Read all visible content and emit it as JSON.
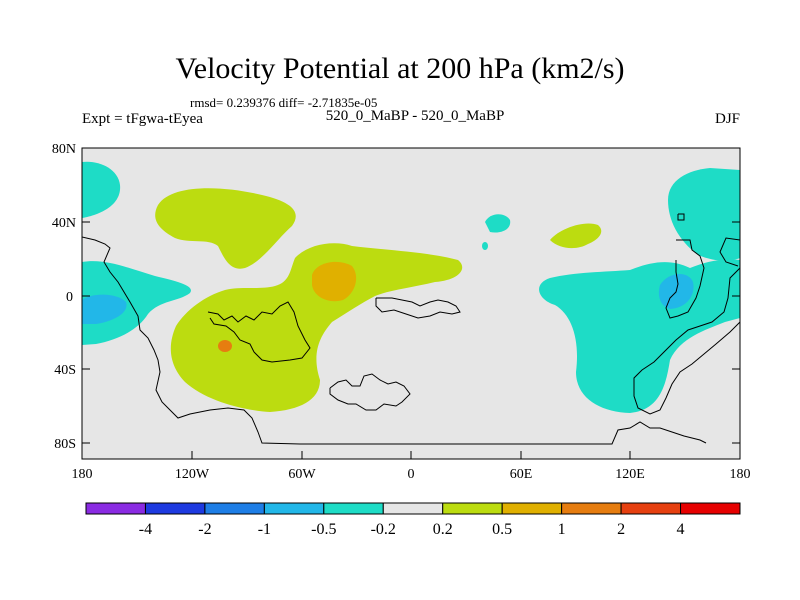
{
  "title": "Velocity Potential at 200 hPa (km2/s)",
  "stats": "rmsd= 0.239376 diff= -2.71835e-05",
  "experiment": "Expt = tFgwa-tEyea",
  "subtitle": "520_0_MaBP - 520_0_MaBP",
  "season": "DJF",
  "lat_ticks": [
    "80N",
    "40N",
    "0",
    "40S",
    "80S"
  ],
  "lon_ticks": [
    "180",
    "120W",
    "60W",
    "0",
    "60E",
    "120E",
    "180"
  ],
  "colorbar": {
    "labels": [
      "-4",
      "-2",
      "-1",
      "-0.5",
      "-0.2",
      "0.2",
      "0.5",
      "1",
      "2",
      "4"
    ],
    "colors": [
      "#8a2be2",
      "#1e3ae0",
      "#1e7ee6",
      "#22b7e8",
      "#1edcc6",
      "#e6e6e6",
      "#bcdc10",
      "#e0b000",
      "#e67d10",
      "#e64010",
      "#e60000"
    ]
  },
  "colors": {
    "background": "#e6e6e6",
    "neg_weak": "#1edcc6",
    "neg_mid": "#22b7e8",
    "pos_weak": "#bcdc10",
    "pos_mid": "#e0b000",
    "pos_strong": "#e67d10"
  }
}
